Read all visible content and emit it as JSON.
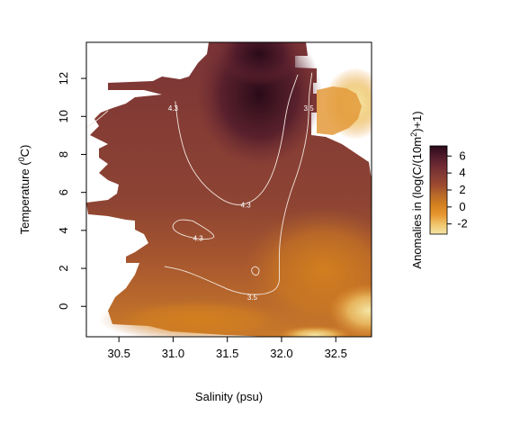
{
  "chart_data": {
    "type": "heatmap",
    "title": "",
    "xlabel": "Salinity (psu)",
    "ylabel_main": "Temperature (",
    "ylabel_sup": "0",
    "ylabel_tail": "C)",
    "xlim": [
      30.2,
      32.83
    ],
    "ylim": [
      -1.6,
      13.9
    ],
    "x_ticks": [
      30.5,
      31.0,
      31.5,
      32.0,
      32.5
    ],
    "x_tick_labels": [
      "30.5",
      "31.0",
      "31.5",
      "32.0",
      "32.5"
    ],
    "y_ticks": [
      0,
      2,
      4,
      6,
      8,
      10,
      12
    ],
    "y_tick_labels": [
      "0",
      "2",
      "4",
      "6",
      "8",
      "10",
      "12"
    ],
    "colorbar": {
      "label_main": "Anomalies in (log(C/(10m",
      "label_sup": "2",
      "label_tail": ")+1)",
      "range": [
        -3.2,
        7.2
      ],
      "ticks": [
        -2,
        0,
        2,
        4,
        6
      ],
      "tick_labels": [
        "-2",
        "0",
        "2",
        "4",
        "6"
      ],
      "colors": [
        "#f5e6a6",
        "#efc56b",
        "#e6952e",
        "#d4801f",
        "#b86a2a",
        "#9c4a2f",
        "#843c35",
        "#6e2a33",
        "#4e1a2a",
        "#2a0a18"
      ]
    },
    "contours": [
      {
        "level": "4.3",
        "points": [
          [
            31.02,
            10.8
          ],
          [
            31.05,
            9.3
          ],
          [
            31.13,
            7.6
          ],
          [
            31.3,
            6.2
          ],
          [
            31.55,
            5.25
          ],
          [
            31.75,
            5.5
          ],
          [
            31.9,
            6.6
          ],
          [
            32.0,
            8.5
          ],
          [
            32.05,
            10.6
          ],
          [
            32.15,
            12.2
          ]
        ]
      },
      {
        "level": "4.3",
        "points": [
          [
            31.18,
            4.5
          ],
          [
            31.33,
            4.0
          ],
          [
            31.4,
            3.6
          ],
          [
            31.25,
            3.5
          ],
          [
            31.05,
            3.8
          ],
          [
            30.98,
            4.2
          ],
          [
            31.05,
            4.6
          ],
          [
            31.18,
            4.5
          ]
        ]
      },
      {
        "level": "3.5",
        "points": [
          [
            30.92,
            2.1
          ],
          [
            31.1,
            1.9
          ],
          [
            31.35,
            1.3
          ],
          [
            31.6,
            0.65
          ],
          [
            31.85,
            0.6
          ],
          [
            31.98,
            1.0
          ],
          [
            31.98,
            2.0
          ],
          [
            31.98,
            3.5
          ],
          [
            32.05,
            5.5
          ],
          [
            32.18,
            7.5
          ],
          [
            32.25,
            9.5
          ],
          [
            32.25,
            11.0
          ],
          [
            32.28,
            12.3
          ]
        ]
      },
      {
        "level": "",
        "points": [
          [
            31.76,
            2.1
          ],
          [
            31.8,
            1.95
          ],
          [
            31.78,
            1.6
          ],
          [
            31.73,
            1.7
          ],
          [
            31.72,
            2.0
          ],
          [
            31.76,
            2.1
          ]
        ]
      },
      {
        "level": "",
        "points": [
          [
            30.2,
            9.4
          ],
          [
            30.3,
            9.8
          ],
          [
            30.4,
            10.3
          ]
        ]
      }
    ],
    "contour_label_positions": [
      {
        "text": "4.3",
        "x": 31.0,
        "y": 10.3
      },
      {
        "text": "4.3",
        "x": 31.67,
        "y": 5.2
      },
      {
        "text": "4.3",
        "x": 31.23,
        "y": 3.45
      },
      {
        "text": "3.5",
        "x": 31.73,
        "y": 0.35
      },
      {
        "text": "3.5",
        "x": 32.25,
        "y": 10.3
      }
    ]
  }
}
